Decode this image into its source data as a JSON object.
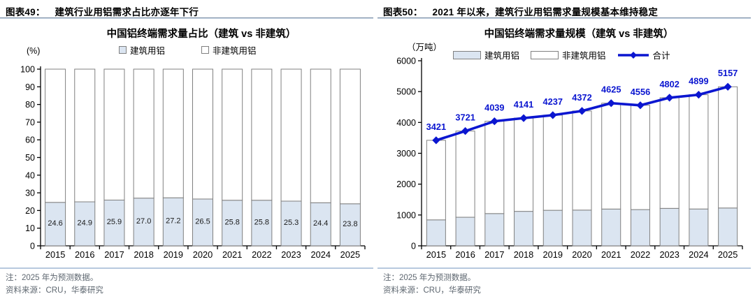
{
  "panels": [
    {
      "figure_label": "图表49：",
      "figure_title": "建筑行业用铝需求占比亦逐年下行",
      "note": "注：2025 年为预测数据。",
      "source": "资料来源：CRU，华泰研究"
    },
    {
      "figure_label": "图表50：",
      "figure_title": "2021 年以来，建筑行业用铝需求量规模基本维持稳定",
      "note": "注：2025 年为预测数据。",
      "source": "资料来源：CRU，华泰研究"
    }
  ],
  "colors": {
    "building_fill": "#dbe5f1",
    "nonbuilding_fill": "#ffffff",
    "bar_border": "#808080",
    "axis": "#000000",
    "total_line": "#0b16d0",
    "data_label": "#0b16d0",
    "bar_label": "#1a1a1a",
    "header_rule": "#7a8ea5",
    "note_rule": "#b7c9de",
    "note_text": "#5e6770"
  },
  "chart_data": [
    {
      "type": "bar",
      "stacked": true,
      "title": "中国铝终端需求量占比（建筑 vs 非建筑）",
      "unit_label": "(%)",
      "xlabel": "",
      "ylabel": "(%)",
      "categories": [
        "2015",
        "2016",
        "2017",
        "2018",
        "2019",
        "2020",
        "2021",
        "2022",
        "2023",
        "2024",
        "2025"
      ],
      "series": [
        {
          "name": "建筑用铝",
          "kind": "bar",
          "values": [
            24.6,
            24.9,
            25.9,
            27.0,
            27.2,
            26.5,
            25.8,
            25.8,
            25.3,
            24.4,
            23.8
          ]
        },
        {
          "name": "非建筑用铝",
          "kind": "bar",
          "values": [
            75.4,
            75.1,
            74.1,
            73.0,
            72.8,
            73.5,
            74.2,
            74.2,
            74.7,
            75.6,
            76.2
          ]
        }
      ],
      "bar_value_labels": [
        "24.6",
        "24.9",
        "25.9",
        "27.0",
        "27.2",
        "26.5",
        "25.8",
        "25.8",
        "25.3",
        "24.4",
        "23.8"
      ],
      "ylim": [
        0,
        100
      ],
      "ytick_step": 10,
      "grid": false,
      "legend_position": "top"
    },
    {
      "type": "bar+line",
      "stacked": true,
      "title": "中国铝终端需求量规模（建筑 vs 非建筑）",
      "unit_label": "（万吨）",
      "xlabel": "",
      "ylabel": "（万吨）",
      "categories": [
        "2015",
        "2016",
        "2017",
        "2018",
        "2019",
        "2020",
        "2021",
        "2022",
        "2023",
        "2024",
        "2025"
      ],
      "series": [
        {
          "name": "建筑用铝",
          "kind": "bar",
          "values": [
            842,
            927,
            1046,
            1118,
            1152,
            1159,
            1193,
            1175,
            1215,
            1195,
            1227
          ]
        },
        {
          "name": "非建筑用铝",
          "kind": "bar",
          "values": [
            2579,
            2794,
            2993,
            3023,
            3085,
            3213,
            3432,
            3381,
            3587,
            3704,
            3930
          ]
        },
        {
          "name": "合计",
          "kind": "line",
          "values": [
            3421,
            3721,
            4039,
            4141,
            4237,
            4372,
            4625,
            4556,
            4802,
            4899,
            5157
          ]
        }
      ],
      "line_value_labels": [
        "3421",
        "3721",
        "4039",
        "4141",
        "4237",
        "4372",
        "4625",
        "4556",
        "4802",
        "4899",
        "5157"
      ],
      "ylim": [
        0,
        6000
      ],
      "ytick_step": 1000,
      "grid": false,
      "legend_position": "top"
    }
  ]
}
